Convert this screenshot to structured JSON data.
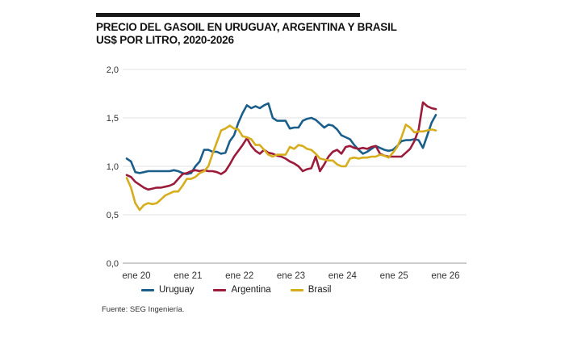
{
  "title_line1": "PRECIO DEL GASOIL EN URUGUAY, ARGENTINA Y BRASIL",
  "title_line2": "US$ POR LITRO, 2020-2026",
  "source": "Fuente: SEG Ingeniería.",
  "chart_data": {
    "type": "line",
    "title": "PRECIO DEL GASOIL EN URUGUAY, ARGENTINA Y BRASIL US$ POR LITRO, 2020-2026",
    "xlabel": "",
    "ylabel": "",
    "ylim": [
      0,
      2.0
    ],
    "y_ticks": [
      0,
      0.5,
      1.0,
      1.5,
      2.0
    ],
    "y_tick_labels": [
      "0,0",
      "0,5",
      "1,0",
      "1,5",
      "2,0"
    ],
    "x_tick_labels": [
      "ene 20",
      "ene 21",
      "ene 22",
      "ene 23",
      "ene 24",
      "ene 25",
      "ene 26"
    ],
    "x_start": "2020-01",
    "x_step": "month",
    "grid": "horizontal",
    "legend_position": "bottom",
    "series": [
      {
        "name": "Uruguay",
        "color": "#1b5e8a",
        "values": [
          1.08,
          1.05,
          0.94,
          0.93,
          0.94,
          0.95,
          0.95,
          0.95,
          0.95,
          0.95,
          0.95,
          0.96,
          0.95,
          0.93,
          0.92,
          0.93,
          1.0,
          1.05,
          1.17,
          1.17,
          1.15,
          1.15,
          1.13,
          1.14,
          1.26,
          1.32,
          1.45,
          1.55,
          1.63,
          1.6,
          1.62,
          1.6,
          1.63,
          1.65,
          1.5,
          1.47,
          1.47,
          1.47,
          1.39,
          1.4,
          1.4,
          1.47,
          1.49,
          1.5,
          1.48,
          1.44,
          1.4,
          1.43,
          1.42,
          1.38,
          1.32,
          1.3,
          1.28,
          1.22,
          1.17,
          1.13,
          1.15,
          1.18,
          1.21,
          1.19,
          1.17,
          1.16,
          1.17,
          1.21,
          1.26,
          1.27,
          1.27,
          1.28,
          1.27,
          1.19,
          1.32,
          1.45,
          1.53
        ]
      },
      {
        "name": "Argentina",
        "color": "#9b1b3a",
        "values": [
          0.91,
          0.89,
          0.84,
          0.81,
          0.78,
          0.76,
          0.77,
          0.78,
          0.78,
          0.79,
          0.8,
          0.82,
          0.87,
          0.92,
          0.93,
          0.95,
          0.96,
          0.95,
          0.96,
          0.95,
          0.95,
          0.94,
          0.92,
          0.95,
          1.02,
          1.1,
          1.16,
          1.22,
          1.29,
          1.21,
          1.16,
          1.13,
          1.17,
          1.14,
          1.13,
          1.11,
          1.1,
          1.08,
          1.05,
          1.03,
          1.0,
          0.95,
          0.97,
          0.98,
          1.1,
          0.95,
          1.02,
          1.1,
          1.15,
          1.17,
          1.13,
          1.2,
          1.21,
          1.19,
          1.18,
          1.19,
          1.18,
          1.2,
          1.21,
          1.13,
          1.11,
          1.1,
          1.1,
          1.1,
          1.1,
          1.14,
          1.18,
          1.26,
          1.38,
          1.66,
          1.62,
          1.6,
          1.59
        ]
      },
      {
        "name": "Brasil",
        "color": "#d6ae1d",
        "values": [
          0.88,
          0.78,
          0.62,
          0.55,
          0.6,
          0.62,
          0.61,
          0.62,
          0.66,
          0.7,
          0.72,
          0.74,
          0.74,
          0.8,
          0.87,
          0.87,
          0.89,
          0.93,
          0.95,
          1.0,
          1.13,
          1.25,
          1.37,
          1.39,
          1.42,
          1.39,
          1.38,
          1.31,
          1.3,
          1.28,
          1.22,
          1.22,
          1.17,
          1.12,
          1.1,
          1.12,
          1.12,
          1.12,
          1.2,
          1.18,
          1.22,
          1.21,
          1.18,
          1.17,
          1.13,
          1.08,
          1.07,
          1.06,
          1.06,
          1.02,
          1.0,
          1.0,
          1.08,
          1.09,
          1.08,
          1.09,
          1.09,
          1.1,
          1.1,
          1.12,
          1.11,
          1.09,
          1.14,
          1.2,
          1.3,
          1.43,
          1.4,
          1.35,
          1.36,
          1.36,
          1.37,
          1.38,
          1.37
        ]
      }
    ]
  }
}
